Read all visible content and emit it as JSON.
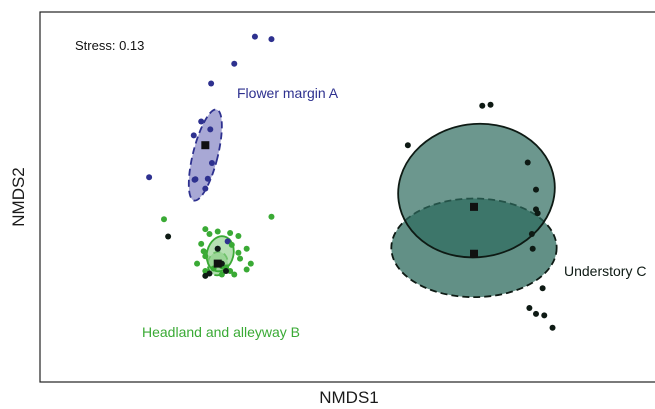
{
  "chart_data": {
    "type": "scatter",
    "title": "",
    "xlabel": "NMDS1",
    "ylabel": "NMDS2",
    "annotation": "Stress: 0.13",
    "grid": false,
    "legend": "none",
    "xlim": [
      -0.3,
      0.45
    ],
    "ylim": [
      -0.4,
      0.35
    ],
    "groups": [
      {
        "name": "Flower margin A",
        "color": "#2e318f",
        "fill": "#7a7abf",
        "centroid": [
          -0.1,
          0.08
        ],
        "ellipse": {
          "cx": -0.1,
          "cy": 0.06,
          "rx": 0.015,
          "ry": 0.095,
          "angle": 14,
          "dashed": true
        },
        "points": [
          [
            -0.04,
            0.3
          ],
          [
            -0.02,
            0.295
          ],
          [
            -0.065,
            0.245
          ],
          [
            -0.093,
            0.205
          ],
          [
            -0.105,
            0.128
          ],
          [
            -0.094,
            0.112
          ],
          [
            -0.114,
            0.1
          ],
          [
            -0.097,
            0.012
          ],
          [
            -0.1,
            -0.008
          ],
          [
            -0.113,
            0.01
          ],
          [
            -0.092,
            0.044
          ],
          [
            -0.168,
            0.015
          ],
          [
            -0.085,
            -0.13
          ],
          [
            -0.073,
            -0.115
          ],
          [
            -0.112,
            0.011
          ]
        ]
      },
      {
        "name": "Headland and alleyway B",
        "color": "#3aaa35",
        "fill": "#8fd08a",
        "centroid": [
          -0.085,
          -0.16
        ],
        "ellipse": {
          "cx": -0.082,
          "cy": -0.14,
          "rx": 0.016,
          "ry": 0.036,
          "angle": 14,
          "dashed": false
        },
        "ellipse2": {
          "cx": -0.085,
          "cy": -0.16,
          "rx": 0.012,
          "ry": 0.024,
          "angle": 12,
          "dashed": true
        },
        "points": [
          [
            -0.02,
            -0.065
          ],
          [
            -0.15,
            -0.07
          ],
          [
            -0.1,
            -0.09
          ],
          [
            -0.085,
            -0.095
          ],
          [
            -0.095,
            -0.1
          ],
          [
            -0.07,
            -0.098
          ],
          [
            -0.06,
            -0.104
          ],
          [
            -0.105,
            -0.12
          ],
          [
            -0.102,
            -0.135
          ],
          [
            -0.068,
            -0.122
          ],
          [
            -0.05,
            -0.13
          ],
          [
            -0.06,
            -0.138
          ],
          [
            -0.058,
            -0.15
          ],
          [
            -0.11,
            -0.16
          ],
          [
            -0.09,
            -0.17
          ],
          [
            -0.1,
            -0.175
          ],
          [
            -0.08,
            -0.165
          ],
          [
            -0.075,
            -0.168
          ],
          [
            -0.045,
            -0.16
          ],
          [
            -0.05,
            -0.172
          ],
          [
            -0.065,
            -0.182
          ],
          [
            -0.08,
            -0.182
          ],
          [
            -0.1,
            -0.145
          ],
          [
            -0.07,
            -0.175
          ]
        ]
      },
      {
        "name": "Understory C",
        "color": "#0e1a14",
        "fill": "#2e6b5e",
        "centroid": [
          0.225,
          -0.045
        ],
        "centroid2": [
          0.225,
          -0.14
        ],
        "ellipse": {
          "cx": 0.228,
          "cy": -0.012,
          "rx": 0.095,
          "ry": 0.135,
          "angle": -8,
          "dashed": false
        },
        "ellipse2": {
          "cx": 0.225,
          "cy": -0.128,
          "rx": 0.1,
          "ry": 0.1,
          "angle": 0,
          "dashed": true
        },
        "points": [
          [
            0.235,
            0.16
          ],
          [
            0.245,
            0.162
          ],
          [
            0.145,
            0.08
          ],
          [
            0.29,
            0.045
          ],
          [
            0.3,
            -0.01
          ],
          [
            0.3,
            -0.05
          ],
          [
            0.302,
            -0.058
          ],
          [
            0.295,
            -0.1
          ],
          [
            0.296,
            -0.13
          ],
          [
            0.308,
            -0.21
          ],
          [
            0.292,
            -0.25
          ],
          [
            0.3,
            -0.262
          ],
          [
            0.31,
            -0.265
          ],
          [
            0.32,
            -0.29
          ],
          [
            -0.145,
            -0.105
          ],
          [
            -0.085,
            -0.13
          ],
          [
            -0.1,
            -0.185
          ],
          [
            -0.095,
            -0.18
          ],
          [
            -0.075,
            -0.175
          ],
          [
            -0.08,
            -0.16
          ]
        ]
      }
    ]
  }
}
